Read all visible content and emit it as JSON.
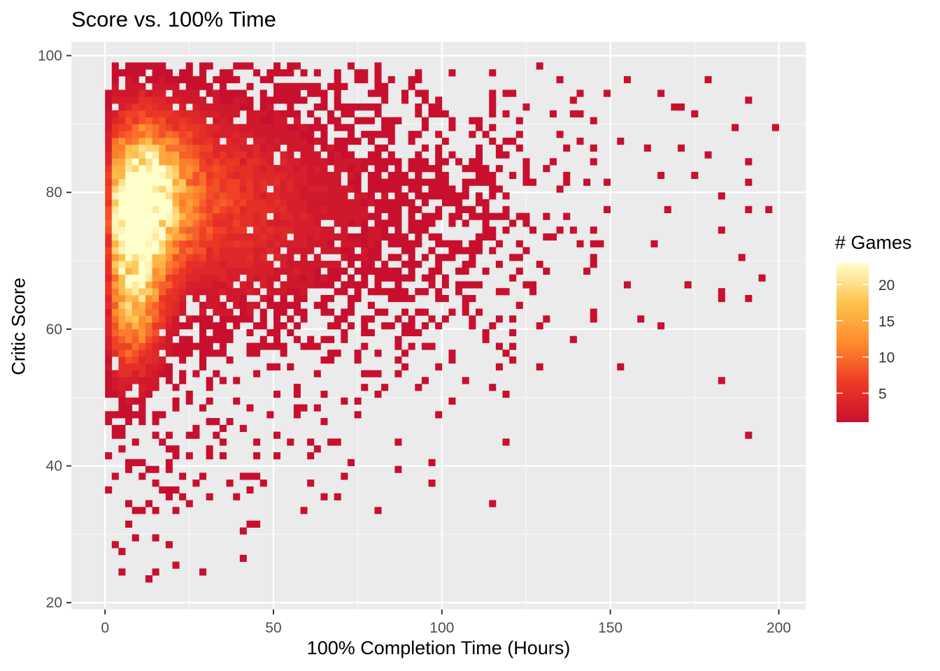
{
  "chart_data": {
    "type": "heatmap",
    "title": "Score vs. 100% Time",
    "xlabel": "100% Completion Time (Hours)",
    "ylabel": "Critic Score",
    "xlim": [
      -10,
      208
    ],
    "ylim": [
      19,
      102
    ],
    "x_ticks": [
      0,
      50,
      100,
      150,
      200
    ],
    "y_ticks": [
      20,
      40,
      60,
      80,
      100
    ],
    "grid": true,
    "bin_width_x": 2,
    "bin_width_y": 1,
    "legend": {
      "title": "# Games",
      "position": "right",
      "ticks": [
        5,
        10,
        15,
        20
      ],
      "range": [
        1,
        23
      ],
      "color_low": "#C8102E",
      "color_mid": "#FF8C2E",
      "color_high": "#FFFFCC"
    },
    "density_clusters": [
      {
        "x": 9,
        "y": 76,
        "sx": 6,
        "sy": 8,
        "peak": 22
      },
      {
        "x": 16,
        "y": 80,
        "sx": 9,
        "sy": 7,
        "peak": 13
      },
      {
        "x": 8,
        "y": 62,
        "sx": 6,
        "sy": 6,
        "peak": 10
      },
      {
        "x": 35,
        "y": 78,
        "sx": 17,
        "sy": 9,
        "peak": 5
      }
    ],
    "sparse_points": [
      [
        39,
        98
      ],
      [
        81,
        97
      ],
      [
        77,
        96
      ],
      [
        155,
        96
      ],
      [
        178,
        96
      ],
      [
        115,
        94
      ],
      [
        140,
        94
      ],
      [
        148,
        94
      ],
      [
        164,
        94
      ],
      [
        191,
        93
      ],
      [
        115,
        91
      ],
      [
        123,
        90
      ],
      [
        132,
        91
      ],
      [
        141,
        91
      ],
      [
        168,
        92
      ],
      [
        171,
        92
      ],
      [
        175,
        91
      ],
      [
        186,
        89
      ],
      [
        198,
        89
      ],
      [
        123,
        88
      ],
      [
        135,
        88
      ],
      [
        144,
        86
      ],
      [
        152,
        87
      ],
      [
        160,
        86
      ],
      [
        170,
        86
      ],
      [
        178,
        85
      ],
      [
        190,
        84
      ],
      [
        133,
        84
      ],
      [
        145,
        84
      ],
      [
        164,
        82
      ],
      [
        175,
        82
      ],
      [
        191,
        81
      ],
      [
        182,
        79
      ],
      [
        190,
        77
      ],
      [
        197,
        77
      ],
      [
        166,
        77
      ],
      [
        148,
        77
      ],
      [
        182,
        74
      ],
      [
        163,
        72
      ],
      [
        188,
        70
      ],
      [
        142,
        68
      ],
      [
        155,
        66
      ],
      [
        173,
        66
      ],
      [
        183,
        65
      ],
      [
        195,
        67
      ],
      [
        191,
        64
      ],
      [
        183,
        64
      ],
      [
        165,
        60
      ],
      [
        158,
        61
      ],
      [
        138,
        58
      ],
      [
        129,
        60
      ],
      [
        120,
        57
      ],
      [
        152,
        54
      ],
      [
        183,
        52
      ],
      [
        191,
        44
      ],
      [
        119,
        43
      ],
      [
        115,
        34
      ],
      [
        103,
        49
      ],
      [
        69,
        43
      ],
      [
        43,
        38
      ],
      [
        41,
        26
      ],
      [
        13,
        23
      ],
      [
        5,
        24
      ],
      [
        5,
        27
      ],
      [
        3,
        28
      ],
      [
        7,
        31
      ],
      [
        14,
        33
      ],
      [
        120,
        55
      ],
      [
        103,
        56
      ],
      [
        145,
        70
      ],
      [
        145,
        62
      ],
      [
        125,
        71
      ]
    ]
  }
}
